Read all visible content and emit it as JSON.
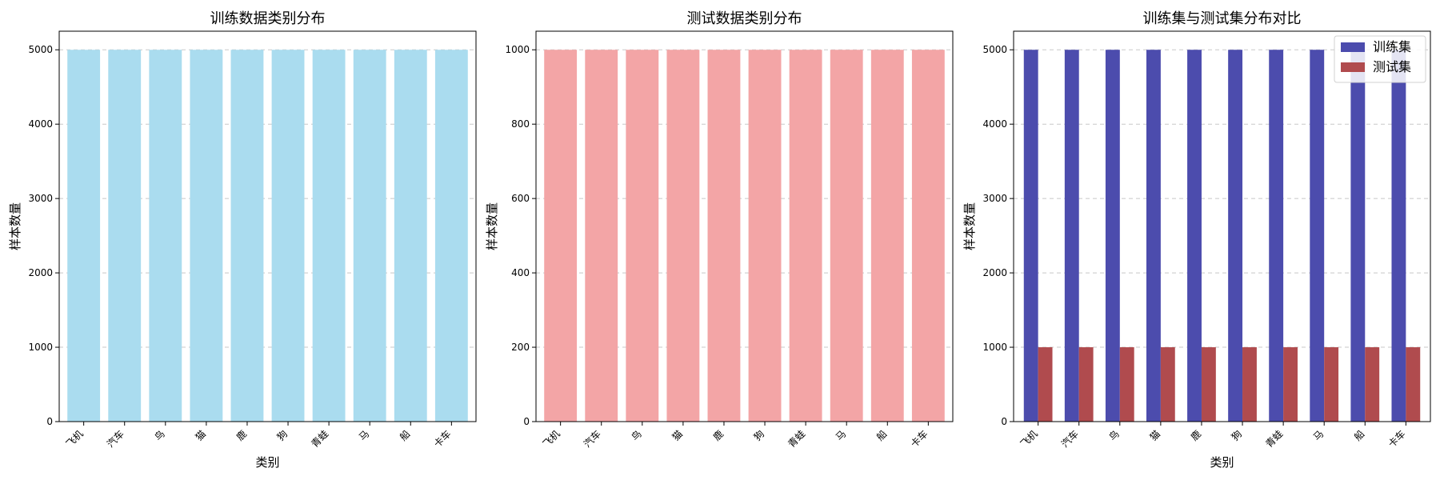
{
  "chart_data": [
    {
      "type": "bar",
      "title": "训练数据类别分布",
      "xlabel": "类别",
      "ylabel": "样本数量",
      "categories": [
        "飞机",
        "汽车",
        "鸟",
        "猫",
        "鹿",
        "狗",
        "青蛙",
        "马",
        "船",
        "卡车"
      ],
      "values": [
        5000,
        5000,
        5000,
        5000,
        5000,
        5000,
        5000,
        5000,
        5000,
        5000
      ],
      "ylim": [
        0,
        5250
      ],
      "yticks": [
        0,
        1000,
        2000,
        3000,
        4000,
        5000
      ],
      "grid": true,
      "colors": [
        "#aadcef"
      ]
    },
    {
      "type": "bar",
      "title": "测试数据类别分布",
      "xlabel": "",
      "ylabel": "样本数量",
      "categories": [
        "飞机",
        "汽车",
        "鸟",
        "猫",
        "鹿",
        "狗",
        "青蛙",
        "马",
        "船",
        "卡车"
      ],
      "values": [
        1000,
        1000,
        1000,
        1000,
        1000,
        1000,
        1000,
        1000,
        1000,
        1000
      ],
      "ylim": [
        0,
        1050
      ],
      "yticks": [
        0,
        200,
        400,
        600,
        800,
        1000
      ],
      "grid": true,
      "colors": [
        "#f3a5a6"
      ]
    },
    {
      "type": "bar",
      "title": "训练集与测试集分布对比",
      "xlabel": "类别",
      "ylabel": "样本数量",
      "categories": [
        "飞机",
        "汽车",
        "鸟",
        "猫",
        "鹿",
        "狗",
        "青蛙",
        "马",
        "船",
        "卡车"
      ],
      "series": [
        {
          "name": "训练集",
          "values": [
            5000,
            5000,
            5000,
            5000,
            5000,
            5000,
            5000,
            5000,
            5000,
            5000
          ]
        },
        {
          "name": "测试集",
          "values": [
            1000,
            1000,
            1000,
            1000,
            1000,
            1000,
            1000,
            1000,
            1000,
            1000
          ]
        }
      ],
      "ylim": [
        0,
        5250
      ],
      "yticks": [
        0,
        1000,
        2000,
        3000,
        4000,
        5000
      ],
      "grid": true,
      "legend_position": "top-right",
      "colors": [
        "#4c4cad",
        "#b04b4e"
      ]
    }
  ]
}
